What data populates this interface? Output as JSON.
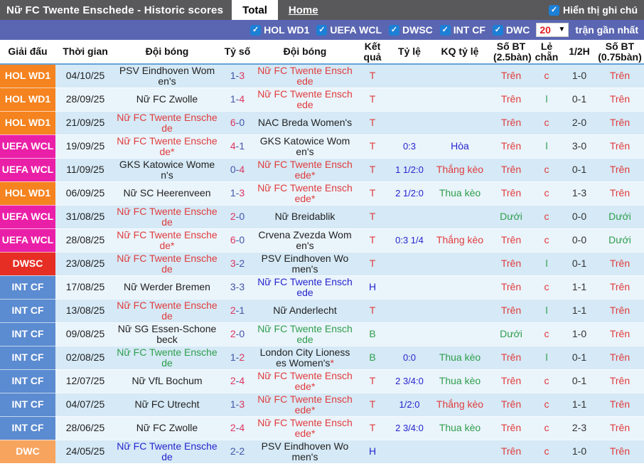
{
  "topbar": {
    "title": "Nữ FC Twente Enschede - Historic scores",
    "tabs": [
      {
        "label": "Total",
        "active": true
      },
      {
        "label": "Home",
        "active": false
      }
    ],
    "show_notes_label": "Hiển thị ghi chú"
  },
  "filters": {
    "leagues": [
      "HOL WD1",
      "UEFA WCL",
      "DWSC",
      "INT CF",
      "DWC"
    ],
    "match_count": "20",
    "recent_label": "trận gần nhất"
  },
  "palette": {
    "red": "#e03c3c",
    "blue": "#2525cd",
    "green": "#2e9e4c",
    "navy": "#2525cd",
    "black": "#222222",
    "scoreRed": "#dc3560",
    "scoreBlue": "#4355a8"
  },
  "league_colors": {
    "HOL WD1": "#f5831f",
    "UEFA WCL": "#ea1fa8",
    "DWSC": "#e62e24",
    "INT CF": "#5b8bd0",
    "DWC": "#f7a45f"
  },
  "table": {
    "headers": [
      "Giải đấu",
      "Thời gian",
      "Đội bóng",
      "Tỷ số",
      "Đội bóng",
      "Kết quả",
      "Tỷ lệ",
      "KQ tỷ lệ",
      "Số BT (2.5bàn)",
      "Lẻ chẵn",
      "1/2H",
      "Số BT (0.75bàn)"
    ],
    "rows": [
      {
        "lg": "HOL WD1",
        "date": "04/10/25",
        "home": {
          "name": "PSV Eindhoven Women's",
          "color": "black"
        },
        "score": {
          "h": "1",
          "a": "3",
          "hc": "scoreBlue",
          "ac": "scoreRed"
        },
        "away": {
          "name": "Nữ FC Twente Enschede",
          "color": "red"
        },
        "res": {
          "t": "T",
          "c": "red"
        },
        "odds": "",
        "kq": {
          "t": "",
          "c": "navy"
        },
        "bt25": {
          "t": "Trên",
          "c": "red"
        },
        "oe": {
          "t": "c",
          "c": "red"
        },
        "half": "1-0",
        "bt075": {
          "t": "Trên",
          "c": "red"
        }
      },
      {
        "lg": "HOL WD1",
        "date": "28/09/25",
        "home": {
          "name": "Nữ FC Zwolle",
          "color": "black"
        },
        "score": {
          "h": "1",
          "a": "4",
          "hc": "scoreBlue",
          "ac": "scoreRed"
        },
        "away": {
          "name": "Nữ FC Twente Enschede",
          "color": "red"
        },
        "res": {
          "t": "T",
          "c": "red"
        },
        "odds": "",
        "kq": {
          "t": "",
          "c": "navy"
        },
        "bt25": {
          "t": "Trên",
          "c": "red"
        },
        "oe": {
          "t": "l",
          "c": "green"
        },
        "half": "0-1",
        "bt075": {
          "t": "Trên",
          "c": "red"
        }
      },
      {
        "lg": "HOL WD1",
        "date": "21/09/25",
        "home": {
          "name": "Nữ FC Twente Enschede",
          "color": "red"
        },
        "score": {
          "h": "6",
          "a": "0",
          "hc": "scoreRed",
          "ac": "scoreBlue"
        },
        "away": {
          "name": "NAC Breda Women's",
          "color": "black"
        },
        "res": {
          "t": "T",
          "c": "red"
        },
        "odds": "",
        "kq": {
          "t": "",
          "c": "navy"
        },
        "bt25": {
          "t": "Trên",
          "c": "red"
        },
        "oe": {
          "t": "c",
          "c": "red"
        },
        "half": "2-0",
        "bt075": {
          "t": "Trên",
          "c": "red"
        }
      },
      {
        "lg": "UEFA WCL",
        "date": "19/09/25",
        "home": {
          "name": "Nữ FC Twente Enschede*",
          "color": "red"
        },
        "score": {
          "h": "4",
          "a": "1",
          "hc": "scoreRed",
          "ac": "scoreBlue"
        },
        "away": {
          "name": "GKS Katowice Women's",
          "color": "black"
        },
        "res": {
          "t": "T",
          "c": "red"
        },
        "odds": "0:3",
        "kq": {
          "t": "Hòa",
          "c": "blue"
        },
        "bt25": {
          "t": "Trên",
          "c": "red"
        },
        "oe": {
          "t": "l",
          "c": "green"
        },
        "half": "3-0",
        "bt075": {
          "t": "Trên",
          "c": "red"
        }
      },
      {
        "lg": "UEFA WCL",
        "date": "11/09/25",
        "home": {
          "name": "GKS Katowice Women's",
          "color": "black"
        },
        "score": {
          "h": "0",
          "a": "4",
          "hc": "scoreBlue",
          "ac": "scoreRed"
        },
        "away": {
          "name": "Nữ FC Twente Enschede*",
          "color": "red"
        },
        "res": {
          "t": "T",
          "c": "red"
        },
        "odds": "1 1/2:0",
        "kq": {
          "t": "Thắng kèo",
          "c": "red"
        },
        "bt25": {
          "t": "Trên",
          "c": "red"
        },
        "oe": {
          "t": "c",
          "c": "red"
        },
        "half": "0-1",
        "bt075": {
          "t": "Trên",
          "c": "red"
        }
      },
      {
        "lg": "HOL WD1",
        "date": "06/09/25",
        "home": {
          "name": "Nữ SC Heerenveen",
          "color": "black"
        },
        "score": {
          "h": "1",
          "a": "3",
          "hc": "scoreBlue",
          "ac": "scoreRed"
        },
        "away": {
          "name": "Nữ FC Twente Enschede*",
          "color": "red"
        },
        "res": {
          "t": "T",
          "c": "red"
        },
        "odds": "2 1/2:0",
        "kq": {
          "t": "Thua kèo",
          "c": "green"
        },
        "bt25": {
          "t": "Trên",
          "c": "red"
        },
        "oe": {
          "t": "c",
          "c": "red"
        },
        "half": "1-3",
        "bt075": {
          "t": "Trên",
          "c": "red"
        }
      },
      {
        "lg": "UEFA WCL",
        "date": "31/08/25",
        "home": {
          "name": "Nữ FC Twente Enschede",
          "color": "red"
        },
        "score": {
          "h": "2",
          "a": "0",
          "hc": "scoreRed",
          "ac": "scoreBlue"
        },
        "away": {
          "name": "Nữ Breidablik",
          "color": "black"
        },
        "res": {
          "t": "T",
          "c": "red"
        },
        "odds": "",
        "kq": {
          "t": "",
          "c": "navy"
        },
        "bt25": {
          "t": "Dưới",
          "c": "green"
        },
        "oe": {
          "t": "c",
          "c": "red"
        },
        "half": "0-0",
        "bt075": {
          "t": "Dưới",
          "c": "green"
        }
      },
      {
        "lg": "UEFA WCL",
        "date": "28/08/25",
        "home": {
          "name": "Nữ FC Twente Enschede*",
          "color": "red"
        },
        "score": {
          "h": "6",
          "a": "0",
          "hc": "scoreRed",
          "ac": "scoreBlue"
        },
        "away": {
          "name": "Crvena Zvezda Women's",
          "color": "black"
        },
        "res": {
          "t": "T",
          "c": "red"
        },
        "odds": "0:3 1/4",
        "kq": {
          "t": "Thắng kèo",
          "c": "red"
        },
        "bt25": {
          "t": "Trên",
          "c": "red"
        },
        "oe": {
          "t": "c",
          "c": "red"
        },
        "half": "0-0",
        "bt075": {
          "t": "Dưới",
          "c": "green"
        }
      },
      {
        "lg": "DWSC",
        "date": "23/08/25",
        "home": {
          "name": "Nữ FC Twente Enschede",
          "color": "red"
        },
        "score": {
          "h": "3",
          "a": "2",
          "hc": "scoreRed",
          "ac": "scoreBlue"
        },
        "away": {
          "name": "PSV Eindhoven Women's",
          "color": "black"
        },
        "res": {
          "t": "T",
          "c": "red"
        },
        "odds": "",
        "kq": {
          "t": "",
          "c": "navy"
        },
        "bt25": {
          "t": "Trên",
          "c": "red"
        },
        "oe": {
          "t": "l",
          "c": "green"
        },
        "half": "0-1",
        "bt075": {
          "t": "Trên",
          "c": "red"
        }
      },
      {
        "lg": "INT CF",
        "date": "17/08/25",
        "home": {
          "name": "Nữ Werder Bremen",
          "color": "black"
        },
        "score": {
          "h": "3",
          "a": "3",
          "hc": "scoreBlue",
          "ac": "scoreBlue"
        },
        "away": {
          "name": "Nữ FC Twente Enschede",
          "color": "blue"
        },
        "res": {
          "t": "H",
          "c": "blue"
        },
        "odds": "",
        "kq": {
          "t": "",
          "c": "navy"
        },
        "bt25": {
          "t": "Trên",
          "c": "red"
        },
        "oe": {
          "t": "c",
          "c": "red"
        },
        "half": "1-1",
        "bt075": {
          "t": "Trên",
          "c": "red"
        }
      },
      {
        "lg": "INT CF",
        "date": "13/08/25",
        "home": {
          "name": "Nữ FC Twente Enschede",
          "color": "red"
        },
        "score": {
          "h": "2",
          "a": "1",
          "hc": "scoreRed",
          "ac": "scoreBlue"
        },
        "away": {
          "name": "Nữ Anderlecht",
          "color": "black"
        },
        "res": {
          "t": "T",
          "c": "red"
        },
        "odds": "",
        "kq": {
          "t": "",
          "c": "navy"
        },
        "bt25": {
          "t": "Trên",
          "c": "red"
        },
        "oe": {
          "t": "l",
          "c": "green"
        },
        "half": "1-1",
        "bt075": {
          "t": "Trên",
          "c": "red"
        }
      },
      {
        "lg": "INT CF",
        "date": "09/08/25",
        "home": {
          "name": "Nữ SG Essen-Schonebeck",
          "color": "black"
        },
        "score": {
          "h": "2",
          "a": "0",
          "hc": "scoreRed",
          "ac": "scoreBlue"
        },
        "away": {
          "name": "Nữ FC Twente Enschede",
          "color": "green"
        },
        "res": {
          "t": "B",
          "c": "green"
        },
        "odds": "",
        "kq": {
          "t": "",
          "c": "navy"
        },
        "bt25": {
          "t": "Dưới",
          "c": "green"
        },
        "oe": {
          "t": "c",
          "c": "red"
        },
        "half": "1-0",
        "bt075": {
          "t": "Trên",
          "c": "red"
        }
      },
      {
        "lg": "INT CF",
        "date": "02/08/25",
        "home": {
          "name": "Nữ FC Twente Enschede",
          "color": "green"
        },
        "score": {
          "h": "1",
          "a": "2",
          "hc": "scoreBlue",
          "ac": "scoreRed"
        },
        "away": {
          "name": "London City Lionesses Women's",
          "color": "black",
          "star": "red"
        },
        "res": {
          "t": "B",
          "c": "green"
        },
        "odds": "0:0",
        "kq": {
          "t": "Thua kèo",
          "c": "green"
        },
        "bt25": {
          "t": "Trên",
          "c": "red"
        },
        "oe": {
          "t": "l",
          "c": "green"
        },
        "half": "0-1",
        "bt075": {
          "t": "Trên",
          "c": "red"
        }
      },
      {
        "lg": "INT CF",
        "date": "12/07/25",
        "home": {
          "name": "Nữ VfL Bochum",
          "color": "black"
        },
        "score": {
          "h": "2",
          "a": "4",
          "hc": "scoreRed",
          "ac": "scoreRed"
        },
        "away": {
          "name": "Nữ FC Twente Enschede*",
          "color": "red"
        },
        "res": {
          "t": "T",
          "c": "red"
        },
        "odds": "2 3/4:0",
        "kq": {
          "t": "Thua kèo",
          "c": "green"
        },
        "bt25": {
          "t": "Trên",
          "c": "red"
        },
        "oe": {
          "t": "c",
          "c": "red"
        },
        "half": "0-1",
        "bt075": {
          "t": "Trên",
          "c": "red"
        }
      },
      {
        "lg": "INT CF",
        "date": "04/07/25",
        "home": {
          "name": "Nữ FC Utrecht",
          "color": "black"
        },
        "score": {
          "h": "1",
          "a": "3",
          "hc": "scoreBlue",
          "ac": "scoreRed"
        },
        "away": {
          "name": "Nữ FC Twente Enschede*",
          "color": "red"
        },
        "res": {
          "t": "T",
          "c": "red"
        },
        "odds": "1/2:0",
        "kq": {
          "t": "Thắng kèo",
          "c": "red"
        },
        "bt25": {
          "t": "Trên",
          "c": "red"
        },
        "oe": {
          "t": "c",
          "c": "red"
        },
        "half": "1-1",
        "bt075": {
          "t": "Trên",
          "c": "red"
        }
      },
      {
        "lg": "INT CF",
        "date": "28/06/25",
        "home": {
          "name": "Nữ FC Zwolle",
          "color": "black"
        },
        "score": {
          "h": "2",
          "a": "4",
          "hc": "scoreRed",
          "ac": "scoreRed"
        },
        "away": {
          "name": "Nữ FC Twente Enschede*",
          "color": "red"
        },
        "res": {
          "t": "T",
          "c": "red"
        },
        "odds": "2 3/4:0",
        "kq": {
          "t": "Thua kèo",
          "c": "green"
        },
        "bt25": {
          "t": "Trên",
          "c": "red"
        },
        "oe": {
          "t": "c",
          "c": "red"
        },
        "half": "2-3",
        "bt075": {
          "t": "Trên",
          "c": "red"
        }
      },
      {
        "lg": "DWC",
        "date": "24/05/25",
        "home": {
          "name": "Nữ FC Twente Enschede",
          "color": "blue"
        },
        "score": {
          "h": "2",
          "a": "2",
          "hc": "scoreBlue",
          "ac": "scoreBlue"
        },
        "away": {
          "name": "PSV Eindhoven Women's",
          "color": "black"
        },
        "res": {
          "t": "H",
          "c": "blue"
        },
        "odds": "",
        "kq": {
          "t": "",
          "c": "navy"
        },
        "bt25": {
          "t": "Trên",
          "c": "red"
        },
        "oe": {
          "t": "c",
          "c": "red"
        },
        "half": "1-0",
        "bt075": {
          "t": "Trên",
          "c": "red"
        }
      }
    ]
  }
}
